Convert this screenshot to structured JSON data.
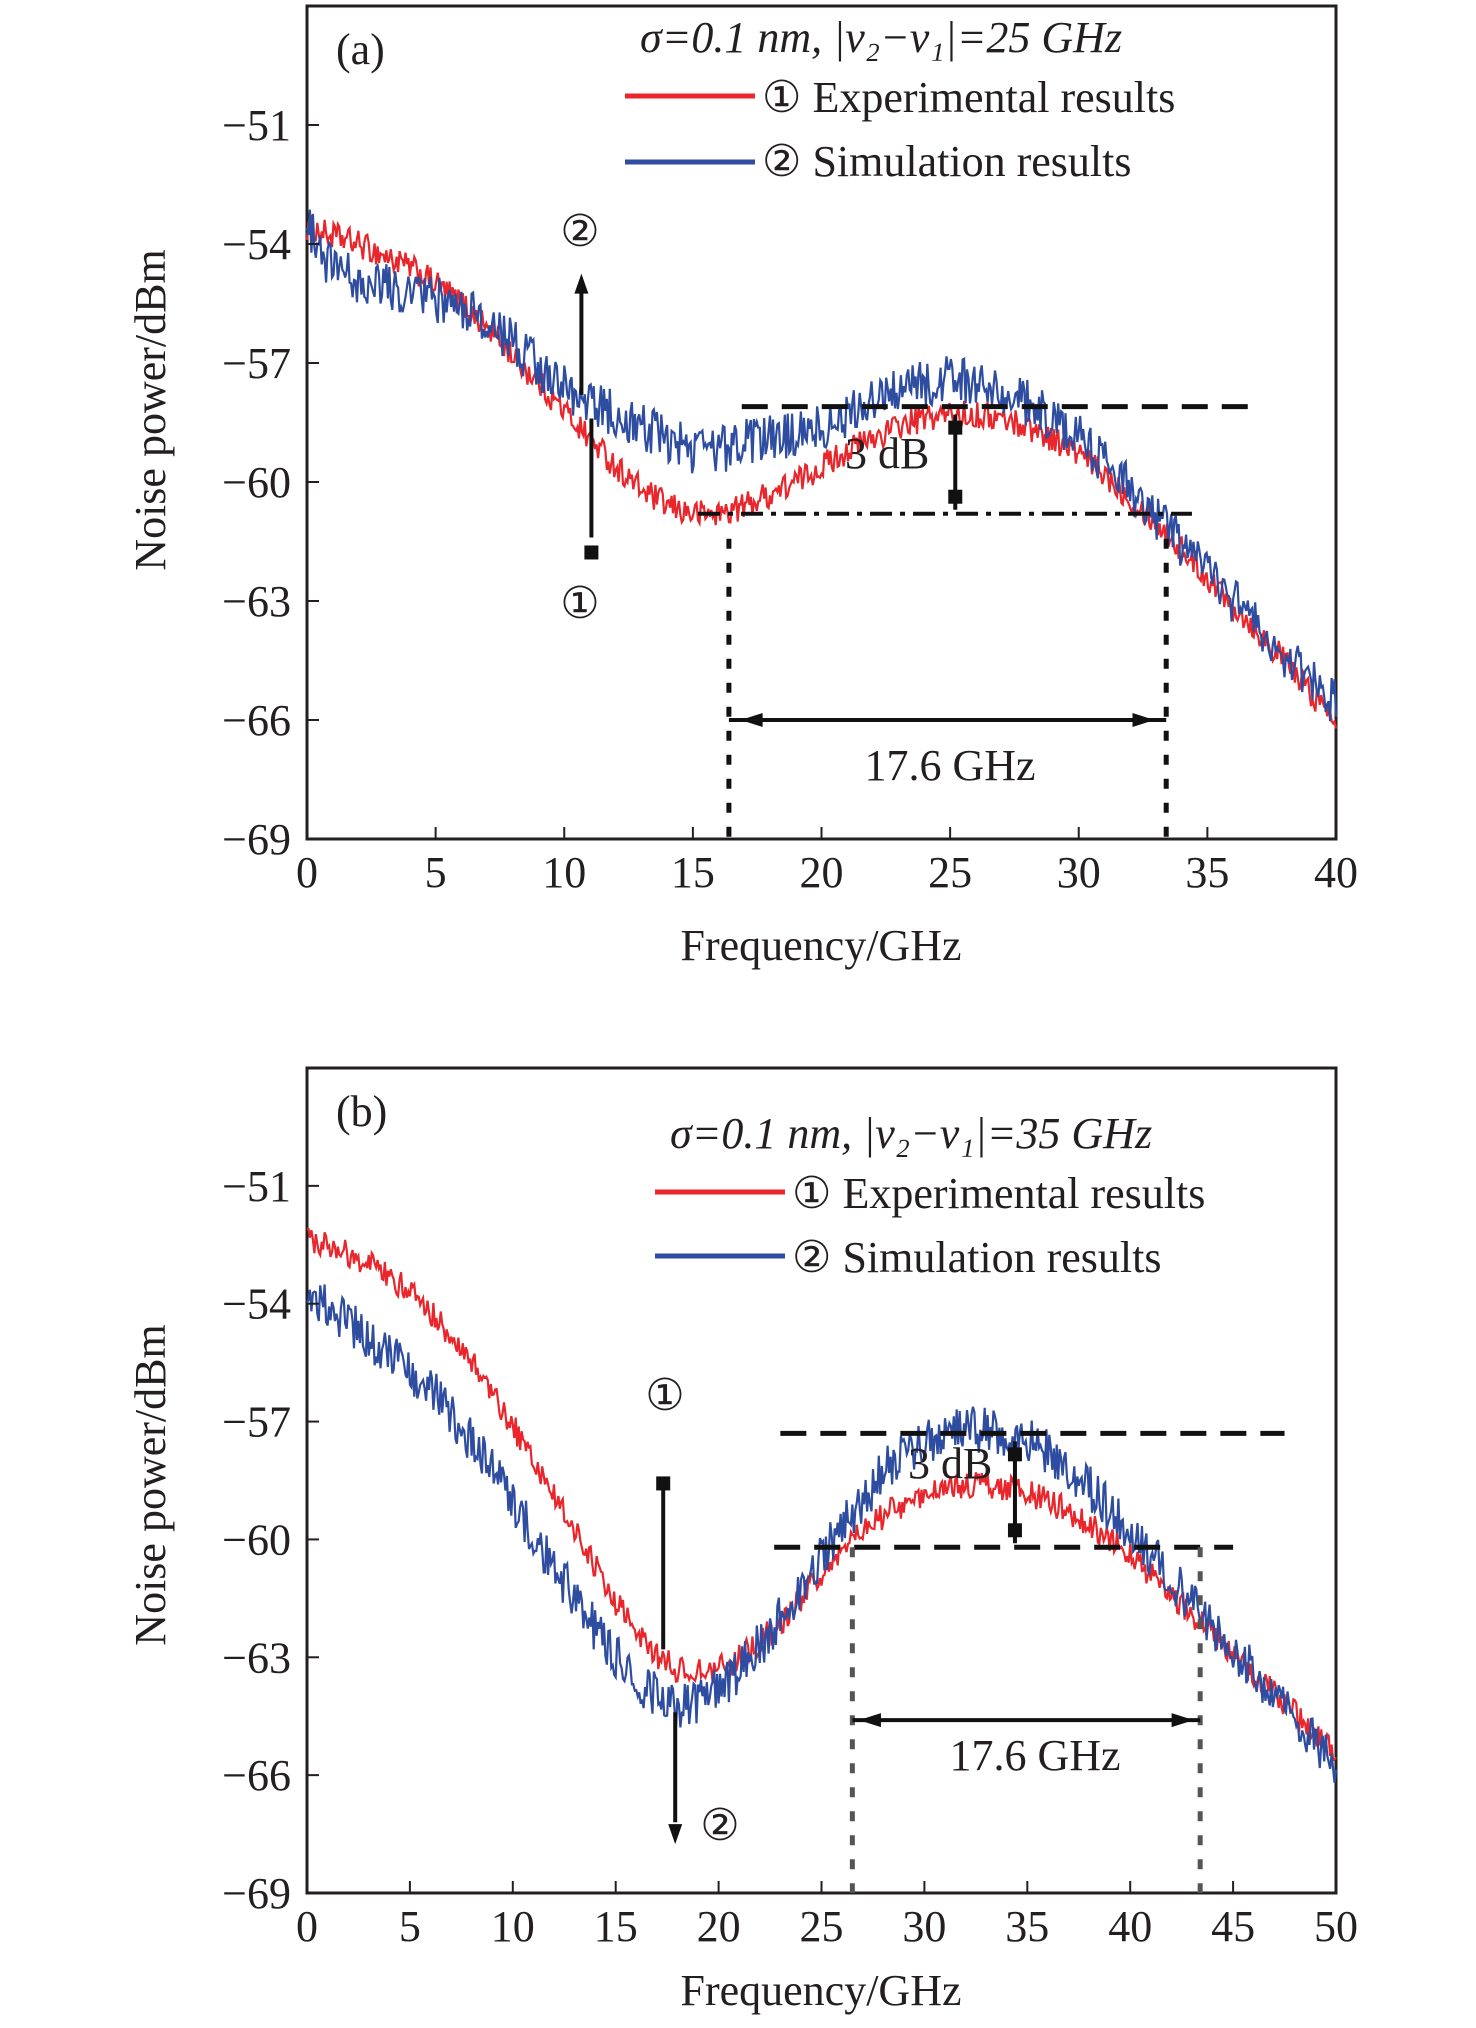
{
  "chart_data": [
    {
      "type": "line",
      "panel_label": "(a)",
      "xlabel": "Frequency/GHz",
      "ylabel": "Noise power/dBm",
      "xlim": [
        0,
        40
      ],
      "ylim": [
        -69,
        -48
      ],
      "x_ticks": [
        0,
        5,
        10,
        15,
        20,
        25,
        30,
        35,
        40
      ],
      "y_ticks": [
        -51,
        -54,
        -57,
        -60,
        -63,
        -66,
        -69
      ],
      "tick_labels_x": [
        "0",
        "5",
        "10",
        "15",
        "20",
        "25",
        "30",
        "35",
        "40"
      ],
      "tick_labels_y": [
        "−51",
        "−54",
        "−57",
        "−60",
        "−63",
        "−66",
        "−69"
      ],
      "grid": false,
      "legend_position": "top-right",
      "condition_text": "σ=0.1 nm, |v₂−v₁|=25 GHz",
      "series": [
        {
          "name": "① Experimental results",
          "color": "#e8262b",
          "x": [
            0,
            1,
            2,
            3,
            4,
            5,
            6,
            7,
            8,
            9,
            10,
            11,
            12,
            13,
            14,
            15,
            16,
            17,
            18,
            19,
            20,
            21,
            22,
            23,
            24,
            25,
            26,
            27,
            28,
            29,
            30,
            31,
            32,
            33,
            34,
            35,
            36,
            37,
            38,
            39,
            40
          ],
          "y": [
            -53.6,
            -53.8,
            -54.0,
            -54.3,
            -54.6,
            -55.0,
            -55.5,
            -56.1,
            -56.8,
            -57.5,
            -58.2,
            -58.9,
            -59.6,
            -60.2,
            -60.6,
            -60.8,
            -60.8,
            -60.6,
            -60.3,
            -60.0,
            -59.6,
            -59.2,
            -58.9,
            -58.6,
            -58.4,
            -58.3,
            -58.3,
            -58.4,
            -58.6,
            -58.9,
            -59.3,
            -59.8,
            -60.4,
            -61.0,
            -61.7,
            -62.4,
            -63.1,
            -63.8,
            -64.5,
            -65.3,
            -66.0
          ]
        },
        {
          "name": "② Simulation results",
          "color": "#2e4da0",
          "x": [
            0,
            1,
            2,
            3,
            4,
            5,
            6,
            7,
            8,
            9,
            10,
            11,
            12,
            13,
            14,
            15,
            16,
            17,
            18,
            19,
            20,
            21,
            22,
            23,
            24,
            25,
            26,
            27,
            28,
            29,
            30,
            31,
            32,
            33,
            34,
            35,
            36,
            37,
            38,
            39,
            40
          ],
          "y": [
            -53.5,
            -54.7,
            -54.9,
            -55.0,
            -55.2,
            -55.4,
            -55.6,
            -56.0,
            -56.5,
            -57.1,
            -57.6,
            -58.0,
            -58.3,
            -58.6,
            -58.9,
            -59.2,
            -59.2,
            -59.0,
            -58.9,
            -58.8,
            -58.6,
            -58.3,
            -58.0,
            -57.7,
            -57.5,
            -57.4,
            -57.5,
            -57.7,
            -58.0,
            -58.4,
            -58.9,
            -59.5,
            -60.2,
            -60.9,
            -61.6,
            -62.3,
            -63.0,
            -63.7,
            -64.4,
            -65.0,
            -65.6
          ]
        }
      ],
      "annotations": {
        "marker_exp": "①",
        "marker_sim": "②",
        "db_label": "3 dB",
        "width_label": "17.6 GHz",
        "upper_level": -58.1,
        "lower_level": -60.8,
        "band_start": 16.4,
        "band_end": 33.4,
        "arrow_x": 10.9
      }
    },
    {
      "type": "line",
      "panel_label": "(b)",
      "xlabel": "Frequency/GHz",
      "ylabel": "Noise power/dBm",
      "xlim": [
        0,
        50
      ],
      "ylim": [
        -69,
        -48
      ],
      "x_ticks": [
        0,
        5,
        10,
        15,
        20,
        25,
        30,
        35,
        40,
        45,
        50
      ],
      "y_ticks": [
        -51,
        -54,
        -57,
        -60,
        -63,
        -66,
        -69
      ],
      "tick_labels_x": [
        "0",
        "5",
        "10",
        "15",
        "20",
        "25",
        "30",
        "35",
        "40",
        "45",
        "50"
      ],
      "tick_labels_y": [
        "−51",
        "−54",
        "−57",
        "−60",
        "−63",
        "−66",
        "−69"
      ],
      "grid": false,
      "legend_position": "top-right",
      "condition_text": "σ=0.1 nm, |v₂−v₁|=35 GHz",
      "series": [
        {
          "name": "① Experimental results",
          "color": "#e8262b",
          "x": [
            0,
            1,
            2,
            3,
            4,
            5,
            6,
            7,
            8,
            9,
            10,
            11,
            12,
            13,
            14,
            15,
            16,
            17,
            18,
            19,
            20,
            21,
            22,
            23,
            24,
            25,
            26,
            27,
            28,
            29,
            30,
            31,
            32,
            33,
            34,
            35,
            36,
            37,
            38,
            39,
            40,
            41,
            42,
            43,
            44,
            45,
            46,
            47,
            48,
            49,
            50
          ],
          "y": [
            -52.3,
            -52.5,
            -52.7,
            -53.0,
            -53.3,
            -53.7,
            -54.2,
            -54.8,
            -55.5,
            -56.3,
            -57.1,
            -58.0,
            -58.9,
            -59.8,
            -60.7,
            -61.6,
            -62.4,
            -63.0,
            -63.3,
            -63.4,
            -63.3,
            -63.0,
            -62.6,
            -62.1,
            -61.5,
            -60.9,
            -60.3,
            -59.8,
            -59.4,
            -59.1,
            -58.9,
            -58.7,
            -58.6,
            -58.6,
            -58.7,
            -58.8,
            -59.0,
            -59.3,
            -59.6,
            -60.0,
            -60.4,
            -60.9,
            -61.4,
            -61.9,
            -62.4,
            -62.9,
            -63.4,
            -63.9,
            -64.4,
            -64.9,
            -65.4
          ]
        },
        {
          "name": "② Simulation results",
          "color": "#2e4da0",
          "x": [
            0,
            1,
            2,
            3,
            4,
            5,
            6,
            7,
            8,
            9,
            10,
            11,
            12,
            13,
            14,
            15,
            16,
            17,
            18,
            19,
            20,
            21,
            22,
            23,
            24,
            25,
            26,
            27,
            28,
            29,
            30,
            31,
            32,
            33,
            34,
            35,
            36,
            37,
            38,
            39,
            40,
            41,
            42,
            43,
            44,
            45,
            46,
            47,
            48,
            49,
            50
          ],
          "y": [
            -53.7,
            -54.1,
            -54.5,
            -54.9,
            -55.3,
            -55.7,
            -56.2,
            -56.8,
            -57.5,
            -58.3,
            -59.1,
            -59.9,
            -60.7,
            -61.5,
            -62.3,
            -63.0,
            -63.6,
            -64.0,
            -64.2,
            -64.1,
            -63.8,
            -63.3,
            -62.7,
            -62.0,
            -61.3,
            -60.5,
            -59.7,
            -59.0,
            -58.3,
            -57.8,
            -57.5,
            -57.3,
            -57.2,
            -57.2,
            -57.3,
            -57.5,
            -57.8,
            -58.2,
            -58.7,
            -59.2,
            -59.8,
            -60.4,
            -61.0,
            -61.6,
            -62.2,
            -62.8,
            -63.4,
            -64.0,
            -64.6,
            -65.2,
            -65.7
          ]
        }
      ],
      "annotations": {
        "marker_exp": "①",
        "marker_sim": "②",
        "db_label": "3 dB",
        "width_label": "17.6 GHz",
        "upper_level": -57.3,
        "lower_level": -60.2,
        "band_start": 26.5,
        "band_end": 43.4,
        "arrow_x": 17.6
      }
    }
  ]
}
